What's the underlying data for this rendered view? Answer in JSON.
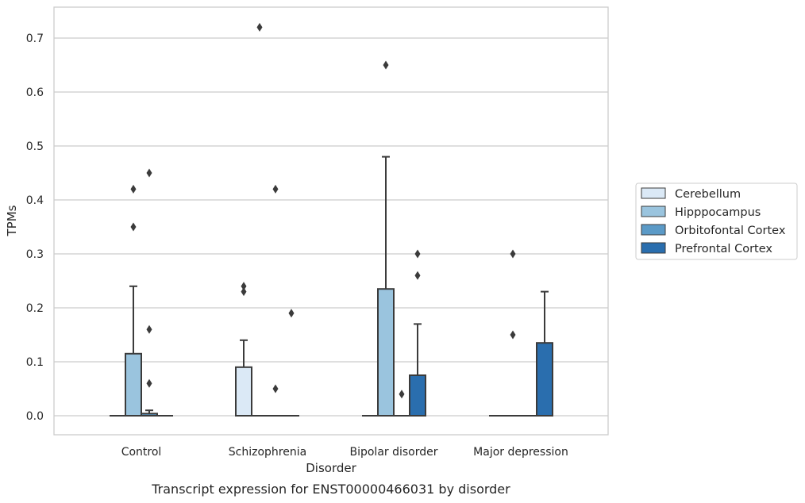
{
  "chart_data": {
    "type": "box",
    "xlabel": "Disorder",
    "ylabel": "TPMs",
    "caption": "Transcript expression for ENST00000466031 by disorder",
    "ylim": [
      -0.035,
      0.76
    ],
    "yticks": [
      0.0,
      0.1,
      0.2,
      0.3,
      0.4,
      0.5,
      0.6,
      0.7
    ],
    "ytick_labels": [
      "0.0",
      "0.1",
      "0.2",
      "0.3",
      "0.4",
      "0.5",
      "0.6",
      "0.7"
    ],
    "grid": "horizontal",
    "legend_position": "right",
    "categories": [
      "Control",
      "Schizophrenia",
      "Bipolar disorder",
      "Major depression"
    ],
    "series": [
      {
        "name": "Cerebellum",
        "color": "#dbe9f6",
        "boxes": [
          {
            "q1": 0,
            "median": 0,
            "q3": 0,
            "whisker_low": 0,
            "whisker_high": 0,
            "outliers": []
          },
          {
            "q1": 0,
            "median": 0,
            "q3": 0.09,
            "whisker_low": 0,
            "whisker_high": 0.14,
            "outliers": [
              0.24,
              0.23
            ]
          },
          {
            "q1": 0,
            "median": 0,
            "q3": 0,
            "whisker_low": 0,
            "whisker_high": 0,
            "outliers": []
          },
          {
            "q1": 0,
            "median": 0,
            "q3": 0,
            "whisker_low": 0,
            "whisker_high": 0,
            "outliers": []
          }
        ]
      },
      {
        "name": "Hipppocampus",
        "color": "#9ac4de",
        "boxes": [
          {
            "q1": 0,
            "median": 0,
            "q3": 0.115,
            "whisker_low": 0,
            "whisker_high": 0.24,
            "outliers": [
              0.42,
              0.35
            ]
          },
          {
            "q1": 0,
            "median": 0,
            "q3": 0,
            "whisker_low": 0,
            "whisker_high": 0,
            "outliers": [
              0.72
            ]
          },
          {
            "q1": 0,
            "median": 0,
            "q3": 0.235,
            "whisker_low": 0,
            "whisker_high": 0.48,
            "outliers": [
              0.65
            ]
          },
          {
            "q1": 0,
            "median": 0,
            "q3": 0,
            "whisker_low": 0,
            "whisker_high": 0,
            "outliers": [
              0.3,
              0.15
            ]
          }
        ]
      },
      {
        "name": "Orbitofontal Cortex",
        "color": "#5b9ac7",
        "boxes": [
          {
            "q1": 0,
            "median": 0,
            "q3": 0.004,
            "whisker_low": 0,
            "whisker_high": 0.01,
            "outliers": [
              0.45,
              0.16,
              0.06
            ]
          },
          {
            "q1": 0,
            "median": 0,
            "q3": 0,
            "whisker_low": 0,
            "whisker_high": 0,
            "outliers": [
              0.42,
              0.05
            ]
          },
          {
            "q1": 0,
            "median": 0,
            "q3": 0,
            "whisker_low": 0,
            "whisker_high": 0,
            "outliers": [
              0.04
            ]
          },
          {
            "q1": 0,
            "median": 0,
            "q3": 0,
            "whisker_low": 0,
            "whisker_high": 0,
            "outliers": []
          }
        ]
      },
      {
        "name": "Prefrontal Cortex",
        "color": "#2a6eae",
        "boxes": [
          {
            "q1": 0,
            "median": 0,
            "q3": 0,
            "whisker_low": 0,
            "whisker_high": 0,
            "outliers": []
          },
          {
            "q1": 0,
            "median": 0,
            "q3": 0,
            "whisker_low": 0,
            "whisker_high": 0,
            "outliers": [
              0.19
            ]
          },
          {
            "q1": 0,
            "median": 0,
            "q3": 0.075,
            "whisker_low": 0,
            "whisker_high": 0.17,
            "outliers": [
              0.3,
              0.26
            ]
          },
          {
            "q1": 0,
            "median": 0,
            "q3": 0.135,
            "whisker_low": 0,
            "whisker_high": 0.23,
            "outliers": []
          }
        ]
      }
    ]
  }
}
